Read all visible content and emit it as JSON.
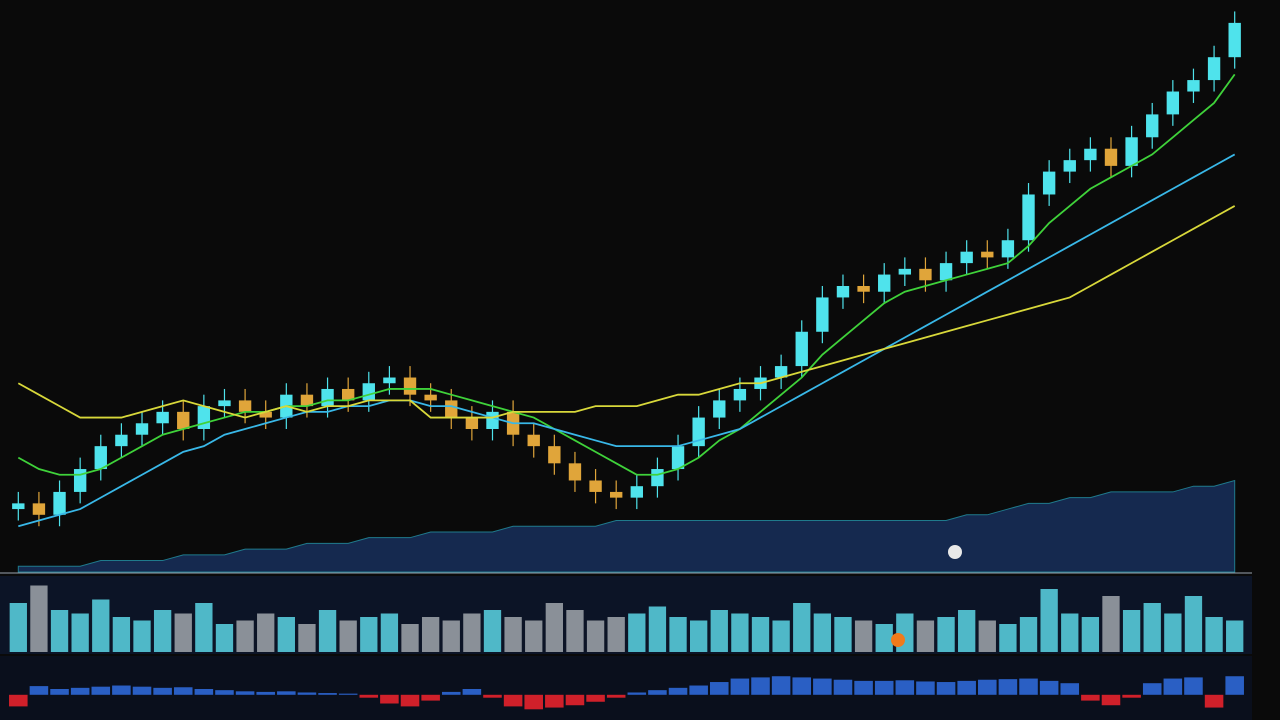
{
  "chart_data": [
    {
      "type": "candlestick",
      "up_color": "#4fe3ec",
      "down_color": "#e0a53a",
      "ylim": [
        0,
        100
      ],
      "open": [
        11,
        12,
        10,
        14,
        18,
        22,
        24,
        26,
        28,
        25,
        29,
        30,
        28,
        27,
        31,
        29,
        32,
        30,
        33,
        34,
        31,
        30,
        27,
        25,
        28,
        24,
        22,
        19,
        16,
        14,
        13,
        15,
        18,
        22,
        27,
        30,
        32,
        34,
        36,
        42,
        48,
        50,
        49,
        52,
        53,
        51,
        54,
        56,
        55,
        58,
        66,
        70,
        72,
        74,
        71,
        76,
        80,
        84,
        86,
        90
      ],
      "high": [
        14,
        14,
        16,
        20,
        24,
        26,
        28,
        30,
        30,
        31,
        32,
        32,
        30,
        33,
        33,
        34,
        34,
        35,
        36,
        36,
        33,
        32,
        29,
        30,
        30,
        26,
        24,
        21,
        18,
        16,
        17,
        20,
        24,
        29,
        32,
        34,
        36,
        38,
        44,
        50,
        52,
        52,
        54,
        55,
        55,
        56,
        58,
        58,
        60,
        68,
        72,
        74,
        76,
        76,
        78,
        82,
        86,
        88,
        92,
        98
      ],
      "low": [
        9,
        8,
        8,
        12,
        16,
        20,
        22,
        24,
        23,
        23,
        27,
        26,
        25,
        25,
        27,
        27,
        28,
        28,
        31,
        29,
        28,
        25,
        23,
        23,
        22,
        20,
        17,
        14,
        12,
        11,
        11,
        13,
        16,
        20,
        25,
        28,
        30,
        32,
        34,
        40,
        46,
        47,
        47,
        50,
        49,
        49,
        52,
        53,
        53,
        56,
        64,
        68,
        70,
        69,
        69,
        74,
        78,
        82,
        84,
        88
      ],
      "close": [
        12,
        10,
        14,
        18,
        22,
        24,
        26,
        28,
        25,
        29,
        30,
        28,
        27,
        31,
        29,
        32,
        30,
        33,
        34,
        31,
        30,
        27,
        25,
        28,
        24,
        22,
        19,
        16,
        14,
        13,
        15,
        18,
        22,
        27,
        30,
        32,
        34,
        36,
        42,
        48,
        50,
        49,
        52,
        53,
        51,
        54,
        56,
        55,
        58,
        66,
        70,
        72,
        74,
        71,
        76,
        80,
        84,
        86,
        90,
        96
      ],
      "lines": [
        {
          "color": "#3fd23a",
          "values": [
            20,
            18,
            17,
            17,
            18,
            20,
            22,
            24,
            25,
            26,
            27,
            28,
            28,
            29,
            29,
            30,
            30,
            31,
            32,
            32,
            32,
            31,
            30,
            29,
            28,
            27,
            25,
            23,
            21,
            19,
            17,
            17,
            18,
            20,
            23,
            25,
            28,
            31,
            34,
            38,
            41,
            44,
            47,
            49,
            50,
            51,
            52,
            53,
            54,
            57,
            61,
            64,
            67,
            69,
            71,
            73,
            76,
            79,
            82,
            87
          ]
        },
        {
          "color": "#39b8e8",
          "values": [
            8,
            9,
            10,
            11,
            13,
            15,
            17,
            19,
            21,
            22,
            24,
            25,
            26,
            27,
            28,
            28,
            29,
            29,
            30,
            30,
            29,
            29,
            28,
            27,
            26,
            26,
            25,
            24,
            23,
            22,
            22,
            22,
            22,
            23,
            24,
            25,
            27,
            29,
            31,
            33,
            35,
            37,
            39,
            41,
            43,
            45,
            47,
            49,
            51,
            53,
            55,
            57,
            59,
            61,
            63,
            65,
            67,
            69,
            71,
            73
          ]
        },
        {
          "color": "#d8d83a",
          "values": [
            33,
            31,
            29,
            27,
            27,
            27,
            28,
            29,
            30,
            29,
            28,
            27,
            28,
            29,
            28,
            29,
            29,
            30,
            30,
            30,
            27,
            27,
            27,
            27,
            28,
            28,
            28,
            28,
            29,
            29,
            29,
            30,
            31,
            31,
            32,
            33,
            33,
            34,
            35,
            36,
            37,
            38,
            39,
            40,
            41,
            42,
            43,
            44,
            45,
            46,
            47,
            48,
            50,
            52,
            54,
            56,
            58,
            60,
            62,
            64
          ]
        }
      ],
      "area": {
        "color": "#15294f",
        "line_color": "#1f7a8c",
        "values": [
          1,
          1,
          1,
          1,
          2,
          2,
          2,
          2,
          3,
          3,
          3,
          4,
          4,
          4,
          5,
          5,
          5,
          6,
          6,
          6,
          7,
          7,
          7,
          7,
          8,
          8,
          8,
          8,
          8,
          9,
          9,
          9,
          9,
          9,
          9,
          9,
          9,
          9,
          9,
          9,
          9,
          9,
          9,
          9,
          9,
          9,
          10,
          10,
          11,
          12,
          12,
          13,
          13,
          14,
          14,
          14,
          14,
          15,
          15,
          16
        ]
      }
    },
    {
      "type": "bar",
      "color": "#8a9098",
      "up_color": "#4fb8c8",
      "ylim": [
        0,
        100
      ],
      "values": [
        70,
        95,
        60,
        55,
        75,
        50,
        45,
        60,
        55,
        70,
        40,
        45,
        55,
        50,
        40,
        60,
        45,
        50,
        55,
        40,
        50,
        45,
        55,
        60,
        50,
        45,
        70,
        60,
        45,
        50,
        55,
        65,
        50,
        45,
        60,
        55,
        50,
        45,
        70,
        55,
        50,
        45,
        40,
        55,
        45,
        50,
        60,
        45,
        40,
        50,
        90,
        55,
        50,
        80,
        60,
        70,
        55,
        80,
        50,
        45
      ]
    },
    {
      "type": "histogram-signed",
      "color_positive": "#2a5fc4",
      "color_negative": "#d0202a",
      "ylim": [
        -40,
        60
      ],
      "values": [
        -20,
        15,
        10,
        12,
        14,
        16,
        14,
        12,
        13,
        10,
        8,
        6,
        5,
        6,
        4,
        3,
        2,
        -5,
        -15,
        -20,
        -10,
        5,
        10,
        -5,
        -20,
        -25,
        -22,
        -18,
        -12,
        -5,
        4,
        8,
        12,
        16,
        22,
        28,
        30,
        32,
        30,
        28,
        26,
        24,
        24,
        25,
        23,
        22,
        24,
        26,
        27,
        28,
        24,
        20,
        -10,
        -18,
        -5,
        20,
        28,
        30,
        -22,
        32
      ]
    }
  ]
}
